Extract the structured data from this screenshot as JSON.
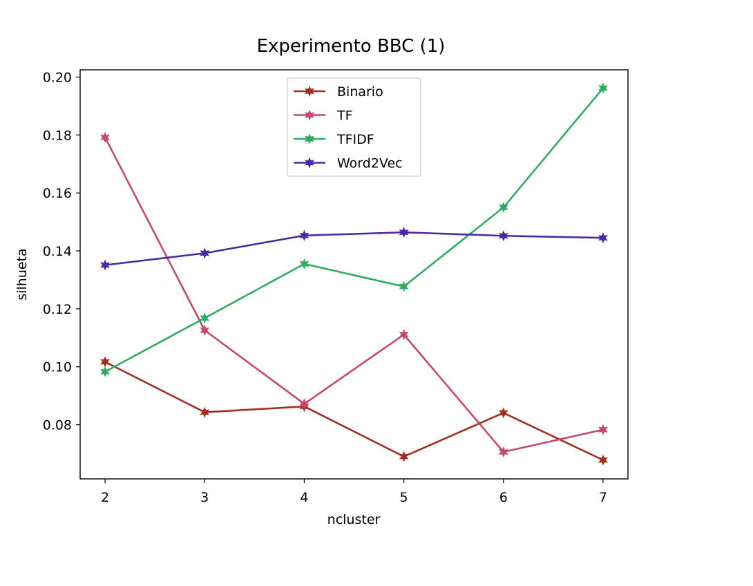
{
  "chart_data": {
    "type": "line",
    "title": "Experimento BBC (1)",
    "xlabel": "ncluster",
    "ylabel": "silhueta",
    "x": [
      2,
      3,
      4,
      5,
      6,
      7
    ],
    "xticks": [
      "2",
      "3",
      "4",
      "5",
      "6",
      "7"
    ],
    "yticks": [
      "0.08",
      "0.10",
      "0.12",
      "0.14",
      "0.16",
      "0.18",
      "0.20"
    ],
    "xlim": [
      1.75,
      7.25
    ],
    "ylim": [
      0.0613,
      0.2025
    ],
    "grid": false,
    "legend_position": "top-center",
    "marker": "star",
    "series": [
      {
        "name": "Binario",
        "color": "#a0301e",
        "values": [
          0.1017,
          0.0843,
          0.0863,
          0.069,
          0.0841,
          0.0678
        ]
      },
      {
        "name": "TF",
        "color": "#c44870",
        "values": [
          0.1792,
          0.1126,
          0.0872,
          0.1111,
          0.0706,
          0.0783
        ]
      },
      {
        "name": "TFIDF",
        "color": "#2fab62",
        "values": [
          0.0983,
          0.1168,
          0.1355,
          0.1277,
          0.155,
          0.1962
        ]
      },
      {
        "name": "Word2Vec",
        "color": "#4a2aa0",
        "values": [
          0.1351,
          0.1392,
          0.1453,
          0.1464,
          0.1452,
          0.1445
        ]
      }
    ]
  }
}
